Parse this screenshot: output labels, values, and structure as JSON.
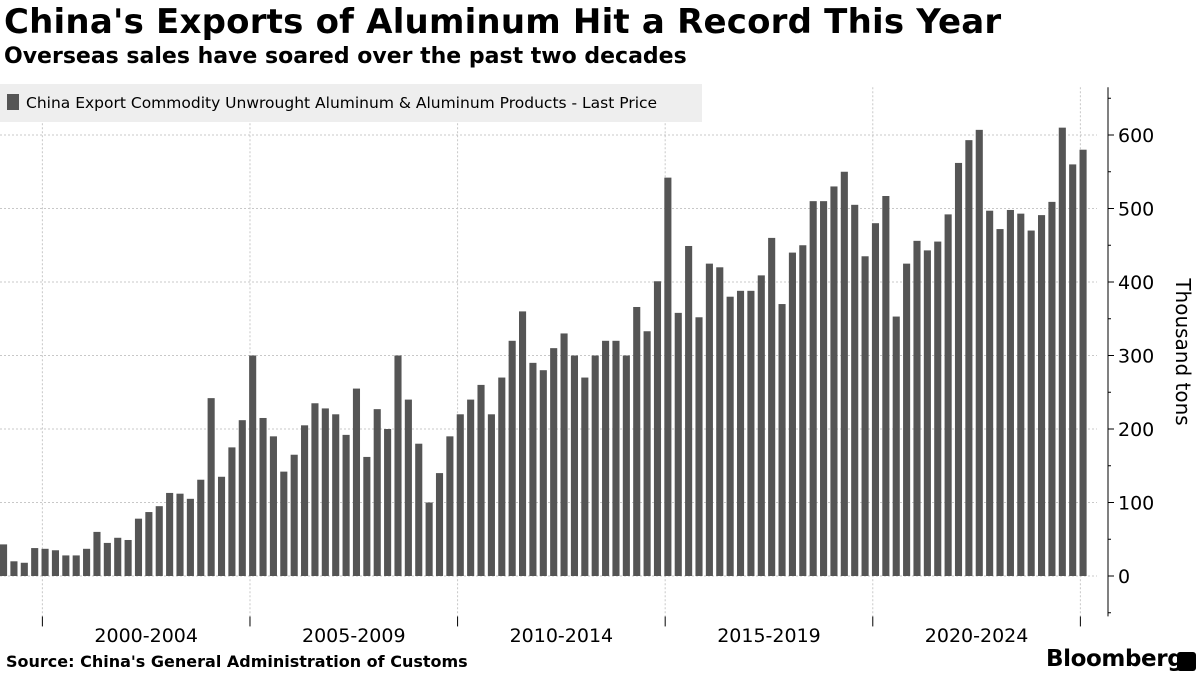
{
  "header": {
    "title": "China's Exports of Aluminum Hit a Record This Year",
    "subtitle": "Overseas sales have soared over the past two decades"
  },
  "footer": {
    "source": "Source: China's General Administration of Customs",
    "brand": "Bloomberg"
  },
  "colors": {
    "bar": "#555555",
    "grid": "#c8c8c8",
    "legend_bg": "#eeeeee"
  },
  "chart_data": {
    "type": "bar",
    "title": "China's Exports of Aluminum Hit a Record This Year",
    "subtitle": "Overseas sales have soared over the past two decades",
    "series": [
      {
        "name": "China Export Commodity Unwrought Aluminum & Aluminum Products - Last Price",
        "values": [
          43,
          20,
          18,
          38,
          37,
          35,
          28,
          28,
          37,
          60,
          45,
          52,
          49,
          78,
          87,
          95,
          113,
          112,
          105,
          131,
          242,
          135,
          175,
          212,
          300,
          215,
          190,
          142,
          165,
          205,
          235,
          228,
          220,
          192,
          255,
          162,
          227,
          200,
          300,
          240,
          180,
          100,
          140,
          190,
          220,
          240,
          260,
          220,
          270,
          320,
          360,
          290,
          280,
          310,
          330,
          300,
          270,
          300,
          320,
          320,
          300,
          366,
          333,
          401,
          542,
          358,
          449,
          352,
          425,
          420,
          380,
          388,
          388,
          409,
          460,
          370,
          440,
          450,
          510,
          510,
          530,
          550,
          505,
          435,
          480,
          517,
          353,
          425,
          456,
          443,
          455,
          492,
          562,
          593,
          607,
          497,
          472,
          498,
          493,
          470,
          491,
          509,
          610,
          560,
          580
        ]
      }
    ],
    "xlabel": "",
    "ylabel": "Thousand tons",
    "ylim": [
      -55,
      665
    ],
    "yticks": [
      0,
      100,
      200,
      300,
      400,
      500,
      600
    ],
    "ytick_labels": [
      "0",
      "100",
      "200",
      "300",
      "400",
      "500",
      "600"
    ],
    "xtick_labels": [
      "2000-2004",
      "2005-2009",
      "2010-2014",
      "2015-2019",
      "2020-2024"
    ],
    "x_group_boundaries_bar_index": [
      4,
      24,
      44,
      64,
      84,
      104
    ],
    "legend": "top-left",
    "grid": true
  }
}
